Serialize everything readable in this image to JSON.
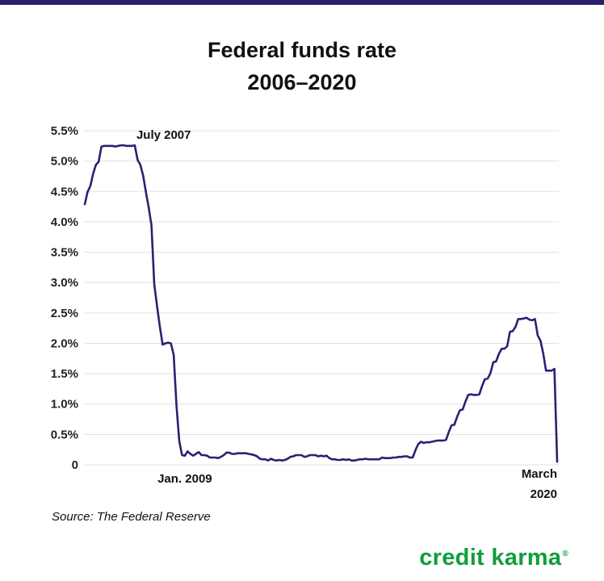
{
  "header": {
    "title_line1": "Federal funds rate",
    "title_line2": "2006–2020",
    "accent_bar_color": "#27206b"
  },
  "footer": {
    "source": "Source: The Federal Reserve",
    "brand": {
      "text": "credit karma",
      "registered": "®",
      "color": "#0f9e3d"
    }
  },
  "chart_data": {
    "type": "line",
    "title": "Federal funds rate 2006–2020",
    "x_start": "Jan 2006",
    "x_end": "March 2020",
    "frequency": "monthly",
    "ylim": [
      0,
      5.5
    ],
    "grid": true,
    "legend": "none",
    "line_color": "#2b2171",
    "grid_color": "#e1e1e1",
    "yticks": [
      {
        "value": 0,
        "label": "0"
      },
      {
        "value": 0.5,
        "label": "0.5%"
      },
      {
        "value": 1.0,
        "label": "1.0%"
      },
      {
        "value": 1.5,
        "label": "1.5%"
      },
      {
        "value": 2.0,
        "label": "2.0%"
      },
      {
        "value": 2.5,
        "label": "2.5%"
      },
      {
        "value": 3.0,
        "label": "3.0%"
      },
      {
        "value": 3.5,
        "label": "3.5%"
      },
      {
        "value": 4.0,
        "label": "4.0%"
      },
      {
        "value": 4.5,
        "label": "4.5%"
      },
      {
        "value": 5.0,
        "label": "5.0%"
      },
      {
        "value": 5.5,
        "label": "5.5%"
      }
    ],
    "values": [
      4.29,
      4.49,
      4.59,
      4.79,
      4.94,
      4.99,
      5.24,
      5.25,
      5.25,
      5.25,
      5.25,
      5.24,
      5.25,
      5.26,
      5.26,
      5.25,
      5.25,
      5.25,
      5.26,
      5.02,
      4.94,
      4.76,
      4.49,
      4.24,
      3.94,
      2.98,
      2.61,
      2.28,
      1.98,
      2.0,
      2.01,
      2.0,
      1.81,
      0.97,
      0.39,
      0.16,
      0.15,
      0.22,
      0.18,
      0.15,
      0.18,
      0.21,
      0.16,
      0.16,
      0.15,
      0.12,
      0.12,
      0.12,
      0.11,
      0.13,
      0.16,
      0.2,
      0.2,
      0.18,
      0.18,
      0.19,
      0.19,
      0.19,
      0.19,
      0.18,
      0.17,
      0.16,
      0.14,
      0.1,
      0.09,
      0.09,
      0.07,
      0.1,
      0.08,
      0.07,
      0.08,
      0.07,
      0.08,
      0.1,
      0.13,
      0.14,
      0.16,
      0.16,
      0.16,
      0.13,
      0.14,
      0.16,
      0.16,
      0.16,
      0.14,
      0.15,
      0.14,
      0.15,
      0.11,
      0.09,
      0.09,
      0.08,
      0.08,
      0.09,
      0.08,
      0.09,
      0.07,
      0.07,
      0.08,
      0.09,
      0.09,
      0.1,
      0.09,
      0.09,
      0.09,
      0.09,
      0.09,
      0.12,
      0.11,
      0.11,
      0.11,
      0.12,
      0.12,
      0.13,
      0.13,
      0.14,
      0.14,
      0.12,
      0.12,
      0.24,
      0.34,
      0.38,
      0.36,
      0.37,
      0.37,
      0.38,
      0.39,
      0.4,
      0.4,
      0.4,
      0.41,
      0.54,
      0.65,
      0.66,
      0.79,
      0.9,
      0.91,
      1.04,
      1.15,
      1.16,
      1.15,
      1.15,
      1.16,
      1.3,
      1.41,
      1.42,
      1.51,
      1.69,
      1.7,
      1.82,
      1.91,
      1.91,
      1.95,
      2.19,
      2.2,
      2.27,
      2.4,
      2.4,
      2.41,
      2.42,
      2.39,
      2.38,
      2.4,
      2.13,
      2.04,
      1.83,
      1.55,
      1.55,
      1.55,
      1.58,
      0.05
    ],
    "annotations": [
      {
        "label": "July 2007",
        "series_index": 18,
        "placement": "peak"
      },
      {
        "label": "Jan. 2009",
        "series_index": 36,
        "placement": "below-axis"
      },
      {
        "label": "March 2020",
        "lines": [
          "March",
          "2020"
        ],
        "series_index": 170,
        "placement": "below-axis-right"
      }
    ]
  }
}
